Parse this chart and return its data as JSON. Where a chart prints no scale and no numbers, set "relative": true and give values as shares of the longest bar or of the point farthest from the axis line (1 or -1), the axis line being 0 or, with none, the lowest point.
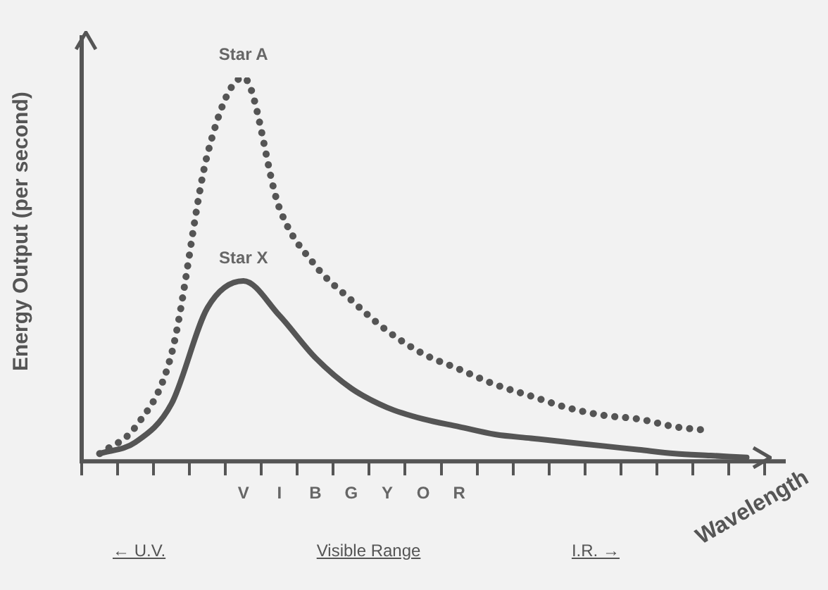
{
  "chart_data": {
    "type": "line",
    "relative": true,
    "xlabel": "Wavelength",
    "ylabel": "Energy Output (per second)",
    "categories": [
      null,
      null,
      null,
      null,
      "V",
      "I",
      "B",
      "G",
      "Y",
      "O",
      "R",
      null,
      null,
      null,
      null,
      null,
      null,
      null,
      null
    ],
    "series": [
      {
        "name": "Star A",
        "color": "#555555",
        "line_style": "dotted",
        "values": [
          0.02,
          0.09,
          0.28,
          0.8,
          1,
          0.66,
          0.51,
          0.42,
          0.34,
          0.28,
          0.24,
          0.2,
          0.17,
          0.14,
          0.12,
          0.11,
          0.09,
          0.08,
          null
        ]
      },
      {
        "name": "Star X",
        "color": "#555555",
        "line_style": "solid",
        "values": [
          0.02,
          0.05,
          0.15,
          0.4,
          0.47,
          0.38,
          0.27,
          0.19,
          0.14,
          0.11,
          0.09,
          0.07,
          0.06,
          0.05,
          0.04,
          0.03,
          0.02,
          0.015,
          0.01
        ]
      }
    ],
    "annotations": [
      "← U.V.",
      "Visible Range",
      "I.R. →"
    ],
    "legend": false,
    "marker": "none",
    "grid": false
  }
}
